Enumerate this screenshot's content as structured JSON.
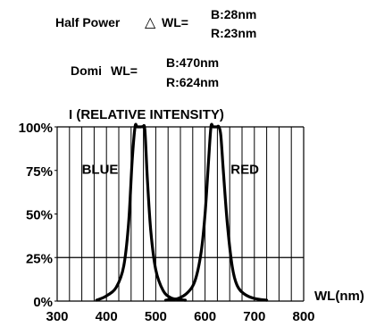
{
  "header": {
    "half_power_label": "Half Power",
    "delta_symbol": "△",
    "wl_eq": "WL=",
    "half_power_blue": "B:28nm",
    "half_power_red": "R:23nm",
    "domi_label": "Domi",
    "domi_wl_eq": "WL=",
    "domi_blue": "B:470nm",
    "domi_red": "R:624nm"
  },
  "chart_data": {
    "type": "line",
    "title": "I (RELATIVE INTENSITY)",
    "xlabel": "WL(nm)",
    "ylabel": "",
    "xlim": [
      300,
      800
    ],
    "ylim": [
      0,
      100
    ],
    "x_ticks": [
      300,
      400,
      500,
      600,
      700,
      800
    ],
    "x_tick_labels": [
      "300",
      "400",
      "500",
      "600",
      "700",
      "800"
    ],
    "y_ticks": [
      0,
      25,
      50,
      75,
      100
    ],
    "y_tick_labels": [
      "0%",
      "25%",
      "50%",
      "75%",
      "100%"
    ],
    "grid": true,
    "reference_lines": [
      {
        "axis": "y",
        "value": 25
      }
    ],
    "series": [
      {
        "name": "BLUE",
        "x": [
          380,
          400,
          420,
          435,
          445,
          452,
          458,
          462,
          466,
          470,
          474,
          478,
          483,
          490,
          500,
          515,
          530,
          545,
          560
        ],
        "y": [
          0.5,
          3,
          8,
          20,
          45,
          80,
          100,
          100,
          100,
          100,
          100,
          98,
          70,
          40,
          18,
          6,
          2,
          1,
          0.5
        ]
      },
      {
        "name": "RED",
        "x": [
          520,
          545,
          565,
          580,
          592,
          600,
          607,
          612,
          616,
          620,
          624,
          628,
          632,
          637,
          645,
          655,
          665,
          680,
          700,
          725
        ],
        "y": [
          0.5,
          1.5,
          5,
          12,
          28,
          50,
          80,
          100,
          100,
          100,
          100,
          100,
          95,
          75,
          45,
          20,
          9,
          4,
          1.5,
          0.5
        ]
      }
    ],
    "series_labels": [
      {
        "text": "BLUE",
        "x": 350,
        "y": 73
      },
      {
        "text": "RED",
        "x": 652,
        "y": 73
      }
    ],
    "colors": {
      "line": "#000000",
      "grid": "#000000"
    }
  }
}
